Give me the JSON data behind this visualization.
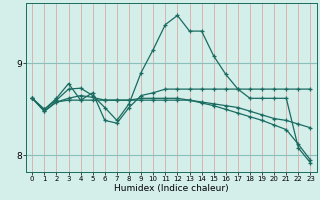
{
  "xlabel": "Humidex (Indice chaleur)",
  "background_color": "#d4eeea",
  "line_color": "#1a6b60",
  "grid_color_v": "#dbaaa8",
  "grid_color_h": "#8bbfba",
  "xlim": [
    -0.5,
    23.5
  ],
  "ylim": [
    7.82,
    9.65
  ],
  "yticks": [
    8,
    9
  ],
  "xticks": [
    0,
    1,
    2,
    3,
    4,
    5,
    6,
    7,
    8,
    9,
    10,
    11,
    12,
    13,
    14,
    15,
    16,
    17,
    18,
    19,
    20,
    21,
    22,
    23
  ],
  "series": [
    {
      "x": [
        0,
        1,
        2,
        3,
        4,
        5,
        6,
        7,
        8,
        9,
        10,
        11,
        12,
        13,
        14,
        15,
        16,
        17,
        18,
        19,
        20,
        21,
        22,
        23
      ],
      "y": [
        8.62,
        8.5,
        8.6,
        8.72,
        8.73,
        8.65,
        8.52,
        8.38,
        8.56,
        8.9,
        9.15,
        9.42,
        9.52,
        9.35,
        9.35,
        9.08,
        8.88,
        8.72,
        8.62,
        8.62,
        8.62,
        8.62,
        8.08,
        7.92
      ]
    },
    {
      "x": [
        0,
        1,
        2,
        3,
        4,
        5,
        6,
        7,
        8,
        9,
        10,
        11,
        12,
        13,
        14,
        15,
        16,
        17,
        18,
        19,
        20,
        21,
        22,
        23
      ],
      "y": [
        8.62,
        8.5,
        8.62,
        8.78,
        8.6,
        8.68,
        8.38,
        8.35,
        8.52,
        8.65,
        8.68,
        8.72,
        8.72,
        8.72,
        8.72,
        8.72,
        8.72,
        8.72,
        8.72,
        8.72,
        8.72,
        8.72,
        8.72,
        8.72
      ]
    },
    {
      "x": [
        0,
        1,
        2,
        3,
        4,
        5,
        6,
        7,
        8,
        9,
        10,
        11,
        12,
        13,
        14,
        15,
        16,
        17,
        18,
        19,
        20,
        21,
        22,
        23
      ],
      "y": [
        8.62,
        8.48,
        8.58,
        8.62,
        8.65,
        8.63,
        8.6,
        8.6,
        8.6,
        8.62,
        8.62,
        8.62,
        8.62,
        8.6,
        8.57,
        8.54,
        8.5,
        8.46,
        8.42,
        8.38,
        8.33,
        8.28,
        8.12,
        7.95
      ]
    },
    {
      "x": [
        0,
        1,
        2,
        3,
        4,
        5,
        6,
        7,
        8,
        9,
        10,
        11,
        12,
        13,
        14,
        15,
        16,
        17,
        18,
        19,
        20,
        21,
        22,
        23
      ],
      "y": [
        8.62,
        8.48,
        8.58,
        8.6,
        8.6,
        8.6,
        8.6,
        8.6,
        8.6,
        8.6,
        8.6,
        8.6,
        8.6,
        8.6,
        8.58,
        8.56,
        8.54,
        8.52,
        8.48,
        8.44,
        8.4,
        8.38,
        8.34,
        8.3
      ]
    }
  ],
  "marker": "+"
}
